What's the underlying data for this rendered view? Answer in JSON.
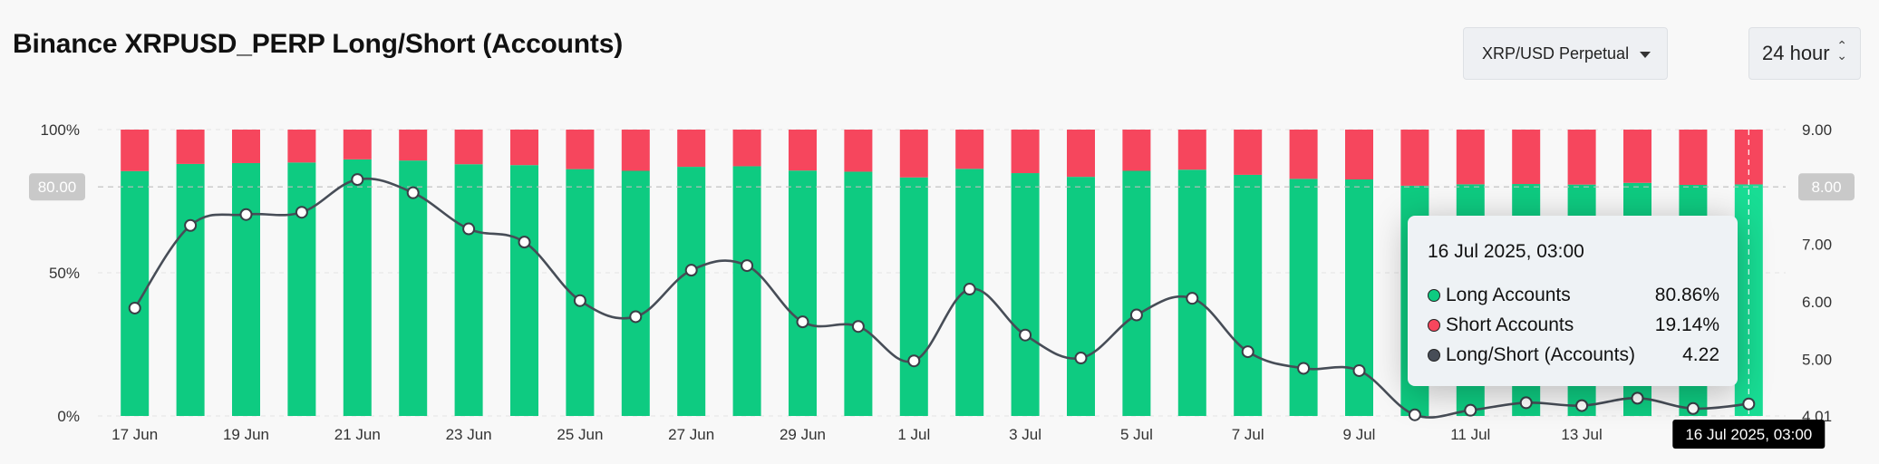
{
  "header": {
    "title": "Binance XRPUSD_PERP Long/Short (Accounts)",
    "symbol_select": "XRP/USD Perpetual",
    "interval_select": "24 hour"
  },
  "chart_data": {
    "type": "bar",
    "categories": [
      "17 Jun",
      "18 Jun",
      "19 Jun",
      "20 Jun",
      "21 Jun",
      "22 Jun",
      "23 Jun",
      "24 Jun",
      "25 Jun",
      "26 Jun",
      "27 Jun",
      "28 Jun",
      "29 Jun",
      "30 Jun",
      "1 Jul",
      "2 Jul",
      "3 Jul",
      "4 Jul",
      "5 Jul",
      "6 Jul",
      "7 Jul",
      "8 Jul",
      "9 Jul",
      "10 Jul",
      "11 Jul",
      "12 Jul",
      "13 Jul",
      "14 Jul",
      "15 Jul",
      "16 Jul"
    ],
    "x_tick_labels": [
      "17 Jun",
      "19 Jun",
      "21 Jun",
      "23 Jun",
      "25 Jun",
      "27 Jun",
      "29 Jun",
      "1 Jul",
      "3 Jul",
      "5 Jul",
      "7 Jul",
      "9 Jul",
      "11 Jul",
      "13 Jul"
    ],
    "series": [
      {
        "name": "Long Accounts",
        "type": "stacked-bar",
        "color": "#0ecb81",
        "values": [
          85.5,
          88.0,
          88.3,
          88.5,
          89.6,
          89.2,
          87.9,
          87.6,
          86.2,
          85.6,
          87.0,
          87.2,
          85.7,
          85.3,
          83.3,
          86.3,
          84.8,
          83.5,
          85.6,
          86.0,
          84.2,
          82.8,
          82.6,
          80.4,
          80.9,
          81.0,
          80.8,
          81.4,
          80.7,
          80.86
        ]
      },
      {
        "name": "Short Accounts",
        "type": "stacked-bar",
        "color": "#f6465d",
        "values": [
          14.5,
          12.0,
          11.7,
          11.5,
          10.4,
          10.8,
          12.1,
          12.4,
          13.8,
          14.4,
          13.0,
          12.8,
          14.3,
          14.7,
          16.7,
          13.7,
          15.2,
          16.5,
          14.4,
          14.0,
          15.8,
          17.2,
          17.4,
          19.6,
          19.1,
          19.0,
          19.2,
          18.6,
          19.3,
          19.14
        ]
      },
      {
        "name": "Long/Short (Accounts)",
        "type": "line",
        "color": "#474d57",
        "values": [
          5.89,
          7.33,
          7.52,
          7.56,
          8.13,
          7.9,
          7.27,
          7.04,
          6.02,
          5.74,
          6.55,
          6.63,
          5.65,
          5.57,
          4.97,
          6.22,
          5.42,
          5.02,
          5.77,
          6.06,
          5.13,
          4.84,
          4.8,
          4.03,
          4.11,
          4.24,
          4.19,
          4.32,
          4.14,
          4.22
        ]
      }
    ],
    "y_left": {
      "ticks": [
        "100%",
        "50%",
        "0%"
      ],
      "ylim": [
        0,
        100
      ],
      "highlight_label": "80.00"
    },
    "y_right": {
      "ticks": [
        "9.00",
        "7.00",
        "6.00",
        "5.00",
        "4.01"
      ],
      "ylim": [
        4.01,
        9.0
      ],
      "highlight_label": "8.00"
    },
    "crosshair_label": "16 Jul 2025, 03:00",
    "legend": "none",
    "grid": true
  },
  "tooltip": {
    "title": "16 Jul 2025, 03:00",
    "rows": [
      {
        "label": "Long Accounts",
        "value": "80.86%",
        "color": "#0ecb81"
      },
      {
        "label": "Short Accounts",
        "value": "19.14%",
        "color": "#f6465d"
      },
      {
        "label": "Long/Short (Accounts)",
        "value": "4.22",
        "color": "#474d57"
      }
    ]
  }
}
